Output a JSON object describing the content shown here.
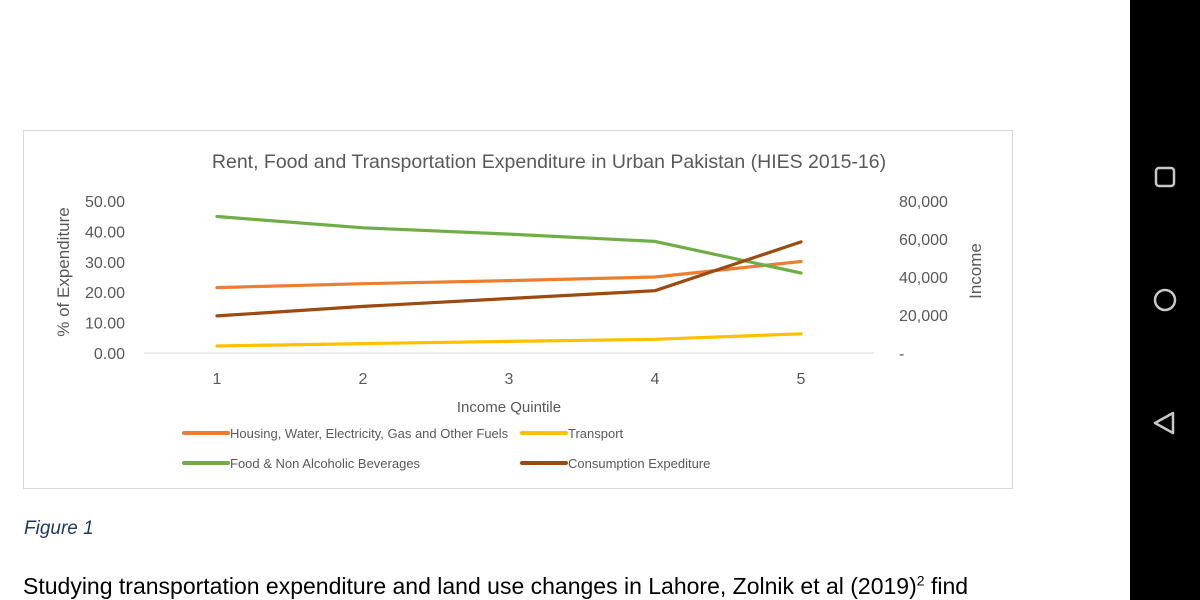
{
  "chart_data": {
    "type": "line",
    "title": "Rent, Food and Transportation Expenditure in Urban Pakistan (HIES 2015-16)",
    "xlabel": "Income Quintile",
    "ylabel": "% of Expenditure",
    "y2label": "Income",
    "categories": [
      "1",
      "2",
      "3",
      "4",
      "5"
    ],
    "ylim": [
      0,
      50
    ],
    "y_ticks": [
      "0.00",
      "10.00",
      "20.00",
      "30.00",
      "40.00",
      "50.00"
    ],
    "y2lim": [
      0,
      80000
    ],
    "y2_ticks": [
      "-",
      "20,000",
      "40,000",
      "60,000",
      "80,000"
    ],
    "grid": false,
    "legend_position": "bottom",
    "series": [
      {
        "name": "Housing, Water, Electricity, Gas and Other Fuels",
        "axis": "left",
        "color": "#ed7d31",
        "values": [
          21.5,
          22.8,
          23.8,
          25.0,
          30.1
        ]
      },
      {
        "name": "Transport",
        "axis": "left",
        "color": "#ffc000",
        "values": [
          2.3,
          3.1,
          3.8,
          4.5,
          6.3
        ]
      },
      {
        "name": "Food & Non Alcoholic Beverages",
        "axis": "left",
        "color": "#70ad47",
        "values": [
          44.9,
          41.2,
          39.1,
          36.7,
          26.3
        ]
      },
      {
        "name": "Consumption Expediture",
        "axis": "right",
        "color": "#9c4a0f",
        "values": [
          19500,
          24500,
          28700,
          32800,
          58500
        ]
      }
    ]
  },
  "figure": {
    "caption": "Figure 1"
  },
  "body": {
    "text": "Studying transportation expenditure and land use changes in Lahore, Zolnik et al (2019)",
    "footnote": "2",
    "text_tail": " find"
  },
  "nav": {
    "recents_icon": "square-icon",
    "home_icon": "circle-icon",
    "back_icon": "triangle-back-icon"
  }
}
